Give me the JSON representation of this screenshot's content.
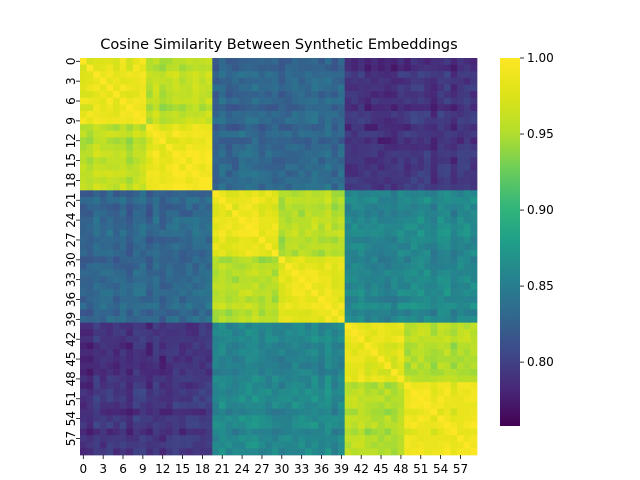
{
  "chart_data": {
    "type": "heatmap",
    "title": "Cosine Similarity Between Synthetic Embeddings",
    "xlabel": "",
    "ylabel": "",
    "n": 60,
    "tick_step": 3,
    "x_tick_labels": [
      "0",
      "3",
      "6",
      "9",
      "12",
      "15",
      "18",
      "21",
      "24",
      "27",
      "30",
      "33",
      "36",
      "39",
      "42",
      "45",
      "48",
      "51",
      "54",
      "57"
    ],
    "y_tick_labels": [
      "0",
      "3",
      "6",
      "9",
      "12",
      "15",
      "18",
      "21",
      "24",
      "27",
      "30",
      "33",
      "36",
      "39",
      "42",
      "45",
      "48",
      "51",
      "54",
      "57"
    ],
    "groups": [
      {
        "start": 0,
        "end": 19
      },
      {
        "start": 20,
        "end": 39
      },
      {
        "start": 40,
        "end": 59
      }
    ],
    "subgroups": [
      {
        "start": 0,
        "end": 9
      },
      {
        "start": 10,
        "end": 19
      },
      {
        "start": 20,
        "end": 29
      },
      {
        "start": 30,
        "end": 39
      },
      {
        "start": 40,
        "end": 48
      },
      {
        "start": 49,
        "end": 59
      }
    ],
    "approx_values": {
      "diagonal": 1.0,
      "same_subgroup": 0.985,
      "same_group_other_subgroup": 0.955,
      "group0_group1": 0.83,
      "group1_group2": 0.86,
      "group0_group2": 0.79
    },
    "colorbar": {
      "min": 0.758,
      "max": 1.0,
      "ticks": [
        "0.80",
        "0.85",
        "0.90",
        "0.95",
        "1.00"
      ],
      "tick_values": [
        0.8,
        0.85,
        0.9,
        0.95,
        1.0
      ],
      "colormap": "viridis"
    },
    "grid": false,
    "legend": "colorbar-right"
  }
}
